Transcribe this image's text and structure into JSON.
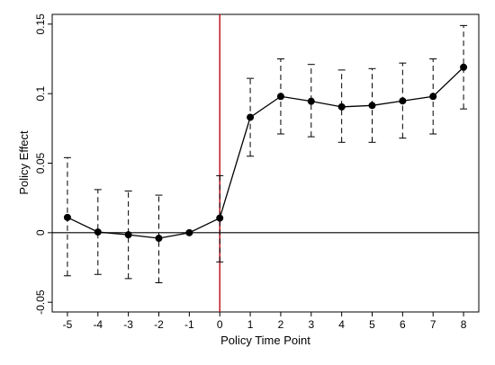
{
  "chart_data": {
    "type": "line",
    "title": "",
    "xlabel": "Policy Time Point",
    "ylabel": "Policy Effect",
    "x": [
      -5,
      -4,
      -3,
      -2,
      -1,
      0,
      1,
      2,
      3,
      4,
      5,
      6,
      7,
      8
    ],
    "series": [
      {
        "values": [
          0.011,
          0.0005,
          -0.0015,
          -0.004,
          0.0,
          0.0105,
          0.083,
          0.098,
          0.0945,
          0.0905,
          0.0915,
          0.0948,
          0.098,
          0.119
        ],
        "ci_lower": [
          -0.031,
          -0.03,
          -0.033,
          -0.036,
          0.0,
          -0.021,
          0.055,
          0.071,
          0.069,
          0.065,
          0.065,
          0.068,
          0.071,
          0.089
        ],
        "ci_upper": [
          0.054,
          0.031,
          0.03,
          0.027,
          0.0,
          0.041,
          0.111,
          0.125,
          0.121,
          0.117,
          0.118,
          0.122,
          0.125,
          0.149
        ]
      }
    ],
    "xticks": [
      "-5",
      "-4",
      "-3",
      "-2",
      "-1",
      "0",
      "1",
      "2",
      "3",
      "4",
      "5",
      "6",
      "7",
      "8"
    ],
    "yticks": [
      "-0.05",
      "0",
      "0.05",
      "0.1",
      "0.15"
    ],
    "ytick_values": [
      -0.05,
      0,
      0.05,
      0.1,
      0.15
    ],
    "xlim": [
      -5.5,
      8.5
    ],
    "ylim": [
      -0.057,
      0.157
    ],
    "reference_lines": [
      {
        "orientation": "horizontal",
        "value": 0,
        "color": "#000000"
      },
      {
        "orientation": "vertical",
        "value": 0,
        "color": "#c0151f"
      }
    ],
    "grid": false,
    "colors": {
      "series": "#000000",
      "vline": "#c0151f",
      "ci": "#000000"
    }
  }
}
